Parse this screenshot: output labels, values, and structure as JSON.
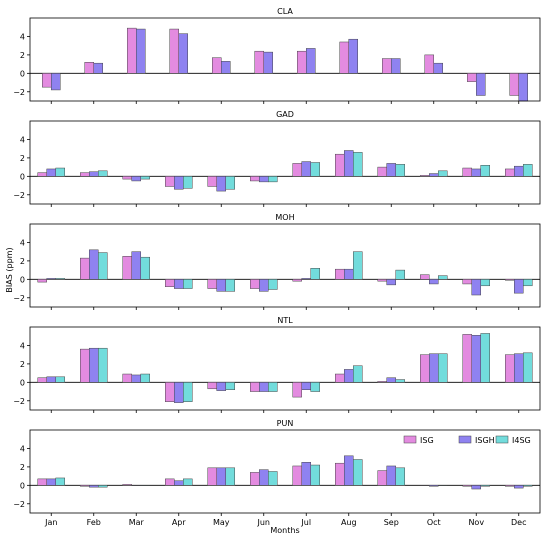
{
  "chart_data": {
    "type": "bar",
    "ylabel": "BIAS (ppm)",
    "xlabel": "Months",
    "categories": [
      "Jan",
      "Feb",
      "Mar",
      "Apr",
      "May",
      "Jun",
      "Jul",
      "Aug",
      "Sep",
      "Oct",
      "Nov",
      "Dec"
    ],
    "legend": {
      "placement": "inside upper right of bottom panel",
      "entries": [
        "ISG",
        "ISGH",
        "I4SG"
      ]
    },
    "colors": {
      "ISG": "#e38be0",
      "ISGH": "#8f82f0",
      "I4SG": "#72dcdc",
      "edge": "#444444"
    },
    "ylim": [
      -3,
      6
    ],
    "yticks": [
      -2,
      0,
      2,
      4
    ],
    "panels": [
      {
        "title": "CLA",
        "series": [
          {
            "name": "ISG",
            "values": [
              -1.5,
              1.2,
              4.9,
              4.8,
              1.7,
              2.4,
              2.4,
              3.4,
              1.6,
              2.0,
              -0.9,
              -2.4
            ]
          },
          {
            "name": "ISGH",
            "values": [
              -1.8,
              1.1,
              4.8,
              4.3,
              1.3,
              2.3,
              2.7,
              3.7,
              1.6,
              1.1,
              -2.4,
              -3.0
            ]
          }
        ]
      },
      {
        "title": "GAD",
        "series": [
          {
            "name": "ISG",
            "values": [
              0.4,
              0.4,
              -0.3,
              -1.1,
              -1.1,
              -0.5,
              1.4,
              2.4,
              1.0,
              0.1,
              0.9,
              0.8
            ]
          },
          {
            "name": "ISGH",
            "values": [
              0.8,
              0.5,
              -0.5,
              -1.4,
              -1.6,
              -0.6,
              1.6,
              2.8,
              1.4,
              0.3,
              0.8,
              1.1
            ]
          },
          {
            "name": "I4SG",
            "values": [
              0.9,
              0.6,
              -0.3,
              -1.3,
              -1.4,
              -0.6,
              1.5,
              2.6,
              1.3,
              0.6,
              1.2,
              1.3
            ]
          }
        ]
      },
      {
        "title": "MOH",
        "series": [
          {
            "name": "ISG",
            "values": [
              -0.3,
              2.3,
              2.5,
              -0.8,
              -1.0,
              -1.0,
              -0.2,
              1.1,
              -0.2,
              0.5,
              -0.5,
              -0.1
            ]
          },
          {
            "name": "ISGH",
            "values": [
              0.1,
              3.2,
              3.0,
              -1.0,
              -1.3,
              -1.3,
              0.1,
              1.1,
              -0.6,
              -0.5,
              -1.7,
              -1.5
            ]
          },
          {
            "name": "I4SG",
            "values": [
              0.1,
              2.9,
              2.4,
              -1.0,
              -1.3,
              -1.1,
              1.2,
              3.0,
              1.0,
              0.4,
              -0.7,
              -0.7
            ]
          }
        ]
      },
      {
        "title": "NTL",
        "series": [
          {
            "name": "ISG",
            "values": [
              0.5,
              3.6,
              0.9,
              -2.1,
              -0.7,
              -1.0,
              -1.6,
              0.9,
              0.1,
              3.0,
              5.2,
              3.0
            ]
          },
          {
            "name": "ISGH",
            "values": [
              0.6,
              3.7,
              0.8,
              -2.2,
              -0.9,
              -1.0,
              -0.8,
              1.4,
              0.5,
              3.1,
              5.1,
              3.1
            ]
          },
          {
            "name": "I4SG",
            "values": [
              0.6,
              3.7,
              0.9,
              -2.1,
              -0.8,
              -1.0,
              -1.0,
              1.8,
              0.3,
              3.1,
              5.3,
              3.2
            ]
          }
        ]
      },
      {
        "title": "PUN",
        "series": [
          {
            "name": "ISG",
            "values": [
              0.7,
              -0.1,
              0.1,
              0.7,
              1.9,
              1.4,
              2.1,
              2.4,
              1.6,
              0.0,
              -0.1,
              -0.1
            ]
          },
          {
            "name": "ISGH",
            "values": [
              0.7,
              -0.2,
              0.0,
              0.5,
              1.9,
              1.7,
              2.5,
              3.2,
              2.1,
              -0.1,
              -0.4,
              -0.3
            ]
          },
          {
            "name": "I4SG",
            "values": [
              0.8,
              -0.2,
              0.0,
              0.7,
              1.9,
              1.5,
              2.2,
              2.8,
              1.9,
              0.0,
              -0.1,
              -0.1
            ]
          }
        ]
      }
    ]
  }
}
